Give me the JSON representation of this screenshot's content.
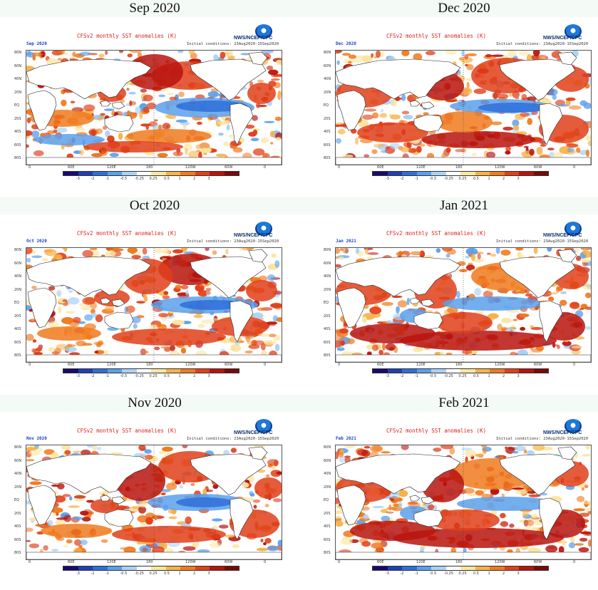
{
  "panels": [
    {
      "title": "Sep 2020",
      "map_label": "Sep 2020",
      "pattern": "sep"
    },
    {
      "title": "Dec 2020",
      "map_label": "Dec 2020",
      "pattern": "dec"
    },
    {
      "title": "Oct 2020",
      "map_label": "Oct 2020",
      "pattern": "oct"
    },
    {
      "title": "Jan 2021",
      "map_label": "Jan 2021",
      "pattern": "jan"
    },
    {
      "title": "Nov 2020",
      "map_label": "Nov 2020",
      "pattern": "nov"
    },
    {
      "title": "Feb 2021",
      "map_label": "Feb 2021",
      "pattern": "feb"
    }
  ],
  "common": {
    "header": "CFSv2 monthly SST anomalies (K)",
    "initial": "Initial conditions: 23Aug2020-15Sep2020",
    "logo_text": "NWS/NCEP/CPC",
    "lat_labels": [
      "80N",
      "60N",
      "40N",
      "20N",
      "EQ",
      "20S",
      "40S",
      "60S",
      "80S"
    ],
    "lon_labels": [
      "0",
      "60E",
      "120E",
      "180",
      "120W",
      "60W",
      "0"
    ],
    "colorbar_labels": [
      "-3",
      "-2",
      "-1",
      "-0.5",
      "-0.25",
      "0.25",
      "0.5",
      "1",
      "2",
      "3"
    ],
    "colorbar_colors": [
      "#1a0a6e",
      "#1f3fb4",
      "#2f6fd8",
      "#5aa0ec",
      "#a8d2f6",
      "#ffffff",
      "#fbe6a0",
      "#f7b24a",
      "#f07a1e",
      "#e0401a",
      "#b8140e",
      "#7a0a06"
    ]
  }
}
